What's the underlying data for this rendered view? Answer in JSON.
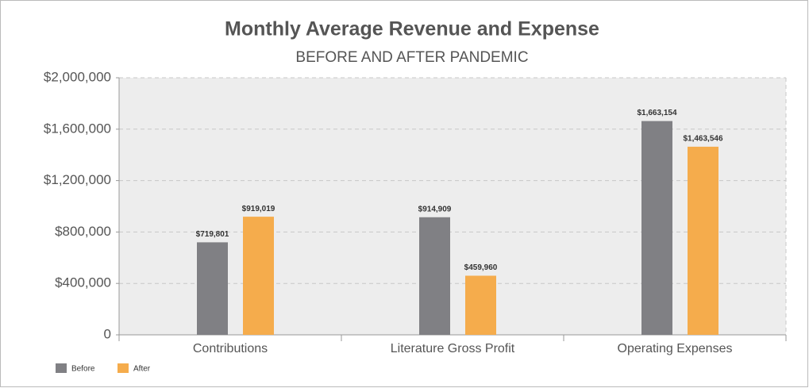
{
  "chart_data": {
    "type": "bar",
    "title": "Monthly Average Revenue and Expense",
    "subtitle": "BEFORE AND AFTER PANDEMIC",
    "categories": [
      "Contributions",
      "Literature Gross Profit",
      "Operating Expenses"
    ],
    "series": [
      {
        "name": "Before",
        "color": "#808084",
        "values": [
          719801,
          914909,
          1663154
        ],
        "value_labels": [
          "$719,801",
          "$914,909",
          "$1,663,154"
        ]
      },
      {
        "name": "After",
        "color": "#f5ac4c",
        "values": [
          919019,
          459960,
          1463546
        ],
        "value_labels": [
          "$919,019",
          "$459,960",
          "$1,463,546"
        ]
      }
    ],
    "ylim": [
      0,
      2000000
    ],
    "yticks": [
      0,
      {
        "value": 400000,
        "label": "$400,000"
      },
      {
        "value": 800000,
        "label": "$800,000"
      },
      {
        "value": 1200000,
        "label": "$1,200,000"
      },
      {
        "value": 1600000,
        "label": "$1,600,000"
      },
      {
        "value": 2000000,
        "label": "$2,000,000"
      }
    ],
    "grid": true,
    "legend": "bottom-left"
  }
}
